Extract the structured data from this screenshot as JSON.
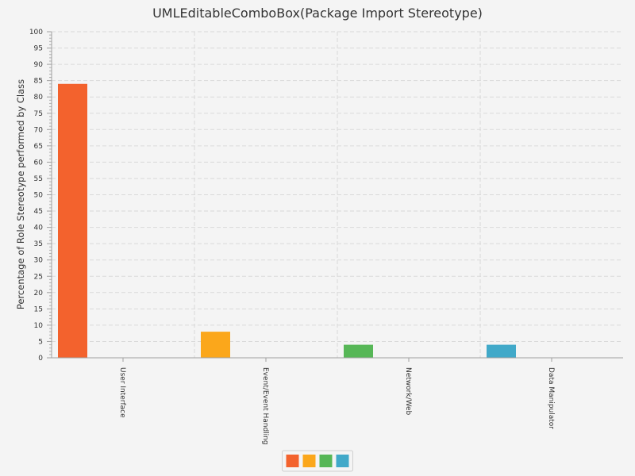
{
  "chart_data": {
    "type": "bar",
    "title": "UMLEditableComboBox(Package Import Stereotype)",
    "xlabel": "",
    "ylabel": "Percentage of Role Stereotype performed by Class",
    "ylim": [
      0,
      100
    ],
    "ytick_step": 5,
    "grid": true,
    "legend_position": "bottom",
    "categories": [
      "User Interface",
      "Event/Event Handling",
      "Network/Web",
      "Data Manipulator"
    ],
    "values": [
      84,
      8,
      4,
      4
    ],
    "colors": [
      "#f3622d",
      "#fba71b",
      "#57b757",
      "#41a9c9"
    ]
  }
}
